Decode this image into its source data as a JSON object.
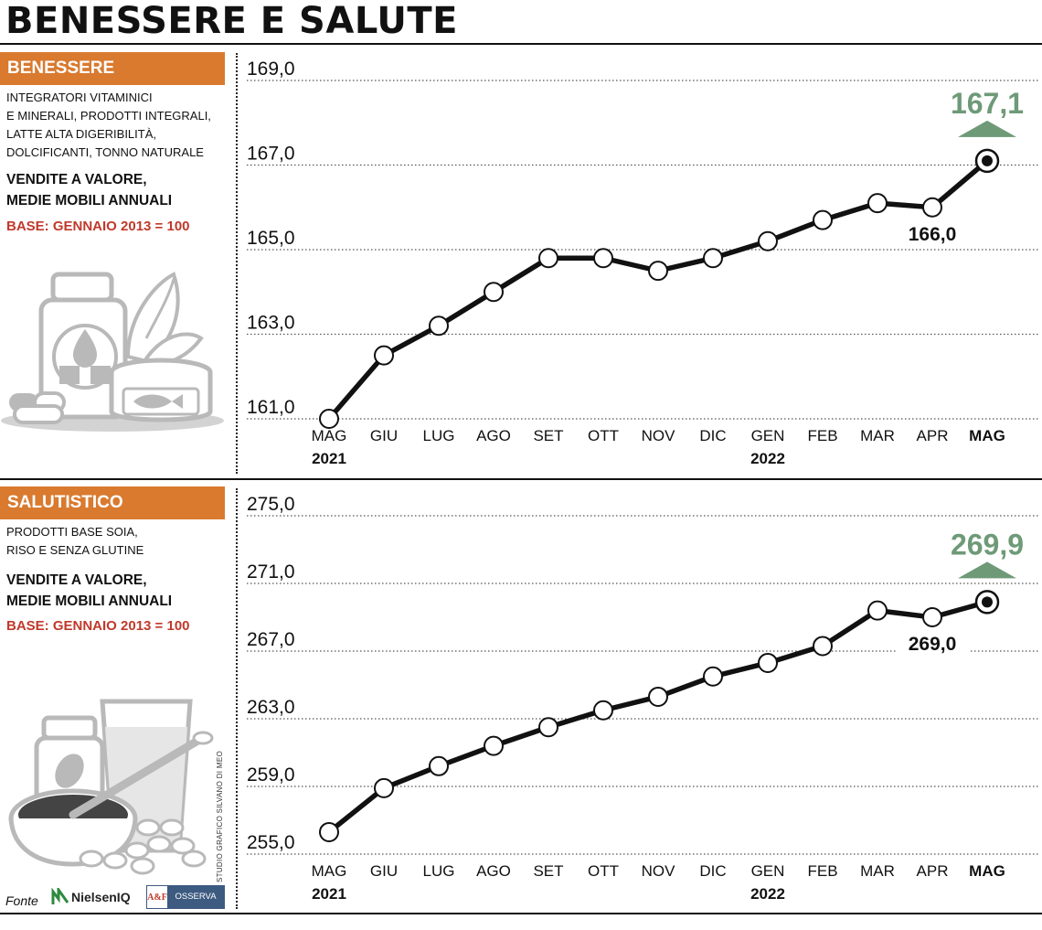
{
  "title": "BENESSERE E SALUTE",
  "panels": [
    {
      "tag": "BENESSERE",
      "description_lines": [
        "INTEGRATORI VITAMINICI",
        "E MINERALI, PRODOTTI INTEGRALI,",
        "LATTE ALTA DIGERIBILITÀ,",
        "DOLCIFICANTI, TONNO NATURALE"
      ],
      "metric_lines": [
        "VENDITE A VALORE,",
        "MEDIE MOBILI ANNUALI"
      ],
      "base": "BASE: GENNAIO 2013 = 100",
      "illustration": "supplement-jar-leaf-tuna-can-capsules"
    },
    {
      "tag": "SALUTISTICO",
      "description_lines": [
        "PRODOTTI BASE SOIA,",
        "RISO E SENZA GLUTINE"
      ],
      "metric_lines": [
        "VENDITE A VALORE,",
        "MEDIE MOBILI ANNUALI"
      ],
      "base": "BASE: GENNAIO 2013 = 100",
      "illustration": "soy-jar-glass-bowl-spoon-beans"
    }
  ],
  "colors": {
    "accent_orange": "#d97a2f",
    "base_red": "#c0392b",
    "highlight_green": "#6e9a78",
    "line": "#111111",
    "illustration_gray": "#b9b9b9"
  },
  "chart_data": [
    {
      "type": "line",
      "categories": [
        "MAG",
        "GIU",
        "LUG",
        "AGO",
        "SET",
        "OTT",
        "NOV",
        "DIC",
        "GEN",
        "FEB",
        "MAR",
        "APR",
        "MAG"
      ],
      "bold_category_index": 12,
      "year_labels": [
        {
          "index": 0,
          "text": "2021"
        },
        {
          "index": 8,
          "text": "2022"
        }
      ],
      "yticks": [
        "161,0",
        "163,0",
        "165,0",
        "167,0",
        "169,0"
      ],
      "ytick_values": [
        161,
        163,
        165,
        167,
        169
      ],
      "ylim": [
        161,
        169
      ],
      "grid": "dotted horizontal",
      "values": [
        161.0,
        162.5,
        163.2,
        164.0,
        164.8,
        164.8,
        164.5,
        164.8,
        165.2,
        165.7,
        166.1,
        166.0,
        167.1
      ],
      "annotations": [
        {
          "index": 11,
          "text": "166,0",
          "position": "below"
        },
        {
          "index": 12,
          "text": "167,1",
          "position": "above",
          "color": "#6e9a78",
          "marker": "up-triangle"
        }
      ]
    },
    {
      "type": "line",
      "categories": [
        "MAG",
        "GIU",
        "LUG",
        "AGO",
        "SET",
        "OTT",
        "NOV",
        "DIC",
        "GEN",
        "FEB",
        "MAR",
        "APR",
        "MAG"
      ],
      "bold_category_index": 12,
      "year_labels": [
        {
          "index": 0,
          "text": "2021"
        },
        {
          "index": 8,
          "text": "2022"
        }
      ],
      "yticks": [
        "255,0",
        "259,0",
        "263,0",
        "267,0",
        "271,0",
        "275,0"
      ],
      "ytick_values": [
        255,
        259,
        263,
        267,
        271,
        275
      ],
      "ylim": [
        255,
        275
      ],
      "grid": "dotted horizontal",
      "values": [
        256.3,
        258.9,
        260.2,
        261.4,
        262.5,
        263.5,
        264.3,
        265.5,
        266.3,
        267.3,
        269.4,
        269.0,
        269.9
      ],
      "annotations": [
        {
          "index": 11,
          "text": "269,0",
          "position": "below"
        },
        {
          "index": 12,
          "text": "269,9",
          "position": "above",
          "color": "#6e9a78",
          "marker": "up-triangle"
        }
      ]
    }
  ],
  "footer": {
    "source_label": "Fonte",
    "source_logos": [
      "NielsenIQ",
      "OSSERVA ITALIA"
    ],
    "osserva_mark": "A&F",
    "credit": "STUDIO GRAFICO SILVANO DI MEO"
  }
}
